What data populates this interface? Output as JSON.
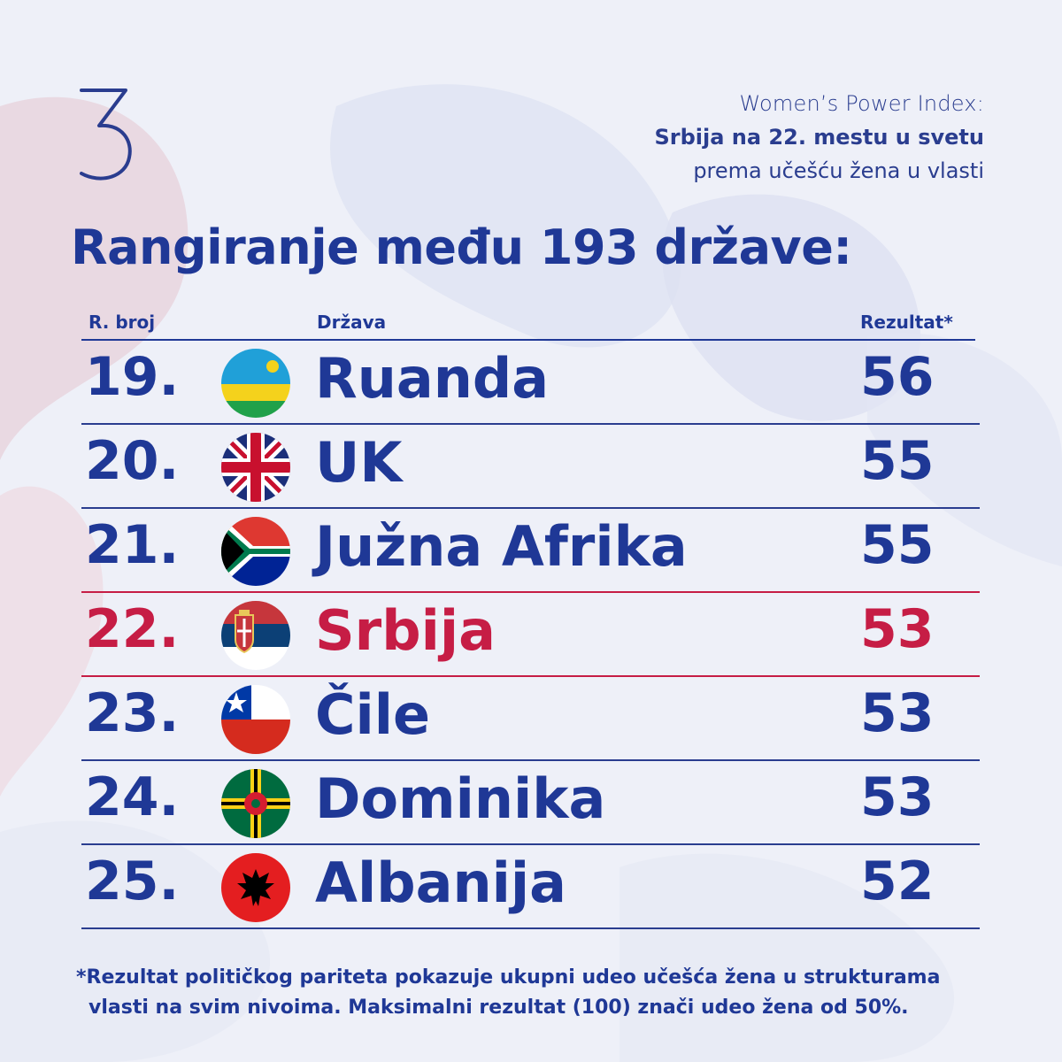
{
  "brand": {
    "logo_glyph": "3"
  },
  "header": {
    "line1": "Women’s Power Index:",
    "line2": "Srbija na 22. mestu u svetu",
    "line3": "prema učešću žena u vlasti"
  },
  "title": "Rangiranje među 193 države:",
  "columns": {
    "rank": "R. broj",
    "country": "Država",
    "score": "Rezultat*"
  },
  "rows": [
    {
      "rank": "19.",
      "country": "Ruanda",
      "score": "56",
      "flag": "rwanda-flag-icon"
    },
    {
      "rank": "20.",
      "country": "UK",
      "score": "55",
      "flag": "uk-flag-icon"
    },
    {
      "rank": "21.",
      "country": "Južna Afrika",
      "score": "55",
      "flag": "south-africa-flag-icon"
    },
    {
      "rank": "22.",
      "country": "Srbija",
      "score": "53",
      "flag": "serbia-flag-icon",
      "highlight": true
    },
    {
      "rank": "23.",
      "country": "Čile",
      "score": "53",
      "flag": "chile-flag-icon"
    },
    {
      "rank": "24.",
      "country": "Dominika",
      "score": "53",
      "flag": "dominica-flag-icon"
    },
    {
      "rank": "25.",
      "country": "Albanija",
      "score": "52",
      "flag": "albania-flag-icon"
    }
  ],
  "footnote": {
    "line1": "*Rezultat političkog pariteta pokazuje ukupni udeo učešća žena u strukturama",
    "line2": "vlasti na svim nivoima. Maksimalni rezultat (100) znači udeo žena od 50%."
  },
  "colors": {
    "primary": "#1f3896",
    "highlight": "#c61d45",
    "background": "#eef0f8"
  }
}
